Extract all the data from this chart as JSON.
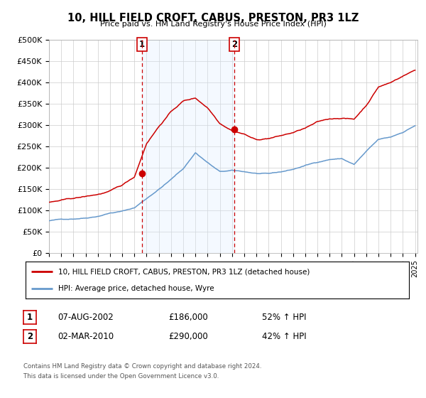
{
  "title": "10, HILL FIELD CROFT, CABUS, PRESTON, PR3 1LZ",
  "subtitle": "Price paid vs. HM Land Registry's House Price Index (HPI)",
  "legend_line1": "10, HILL FIELD CROFT, CABUS, PRESTON, PR3 1LZ (detached house)",
  "legend_line2": "HPI: Average price, detached house, Wyre",
  "transaction1_date": "07-AUG-2002",
  "transaction1_price": "£186,000",
  "transaction1_hpi": "52% ↑ HPI",
  "transaction1_x": 2002.6,
  "transaction1_y": 186000,
  "transaction2_date": "02-MAR-2010",
  "transaction2_price": "£290,000",
  "transaction2_hpi": "42% ↑ HPI",
  "transaction2_x": 2010.17,
  "transaction2_y": 290000,
  "footer_line1": "Contains HM Land Registry data © Crown copyright and database right 2024.",
  "footer_line2": "This data is licensed under the Open Government Licence v3.0.",
  "red_line_color": "#cc0000",
  "blue_line_color": "#6699cc",
  "background_color": "#ffffff",
  "plot_bg_color": "#ffffff",
  "grid_color": "#cccccc",
  "shading_color": "#ddeeff",
  "vline_color": "#cc0000",
  "ylim": [
    0,
    500000
  ],
  "yticks": [
    0,
    50000,
    100000,
    150000,
    200000,
    250000,
    300000,
    350000,
    400000,
    450000,
    500000
  ],
  "xlim_start": 1995.0,
  "xlim_end": 2025.2,
  "xticks": [
    1995,
    1996,
    1997,
    1998,
    1999,
    2000,
    2001,
    2002,
    2003,
    2004,
    2005,
    2006,
    2007,
    2008,
    2009,
    2010,
    2011,
    2012,
    2013,
    2014,
    2015,
    2016,
    2017,
    2018,
    2019,
    2020,
    2021,
    2022,
    2023,
    2024,
    2025
  ],
  "hpi_xp": [
    1995,
    1996,
    1997,
    1998,
    1999,
    2000,
    2001,
    2002,
    2003,
    2004,
    2005,
    2006,
    2007,
    2008,
    2009,
    2010,
    2011,
    2012,
    2013,
    2014,
    2015,
    2016,
    2017,
    2018,
    2019,
    2020,
    2021,
    2022,
    2023,
    2024,
    2025
  ],
  "hpi_yp": [
    75000,
    78000,
    80000,
    83000,
    88000,
    96000,
    100000,
    108000,
    130000,
    152000,
    175000,
    200000,
    238000,
    215000,
    193000,
    195000,
    192000,
    188000,
    186000,
    190000,
    196000,
    205000,
    213000,
    220000,
    222000,
    208000,
    238000,
    265000,
    270000,
    282000,
    298000
  ],
  "prop_xp": [
    1995,
    1996,
    1997,
    1998,
    1999,
    2000,
    2001,
    2002,
    2003,
    2004,
    2005,
    2006,
    2007,
    2008,
    2009,
    2010,
    2011,
    2012,
    2013,
    2014,
    2015,
    2016,
    2017,
    2018,
    2019,
    2020,
    2021,
    2022,
    2023,
    2024,
    2025
  ],
  "prop_yp": [
    118000,
    122000,
    126000,
    130000,
    135000,
    142000,
    155000,
    175000,
    255000,
    295000,
    330000,
    355000,
    362000,
    340000,
    305000,
    290000,
    282000,
    268000,
    272000,
    278000,
    285000,
    295000,
    308000,
    315000,
    318000,
    315000,
    348000,
    392000,
    402000,
    418000,
    432000
  ]
}
